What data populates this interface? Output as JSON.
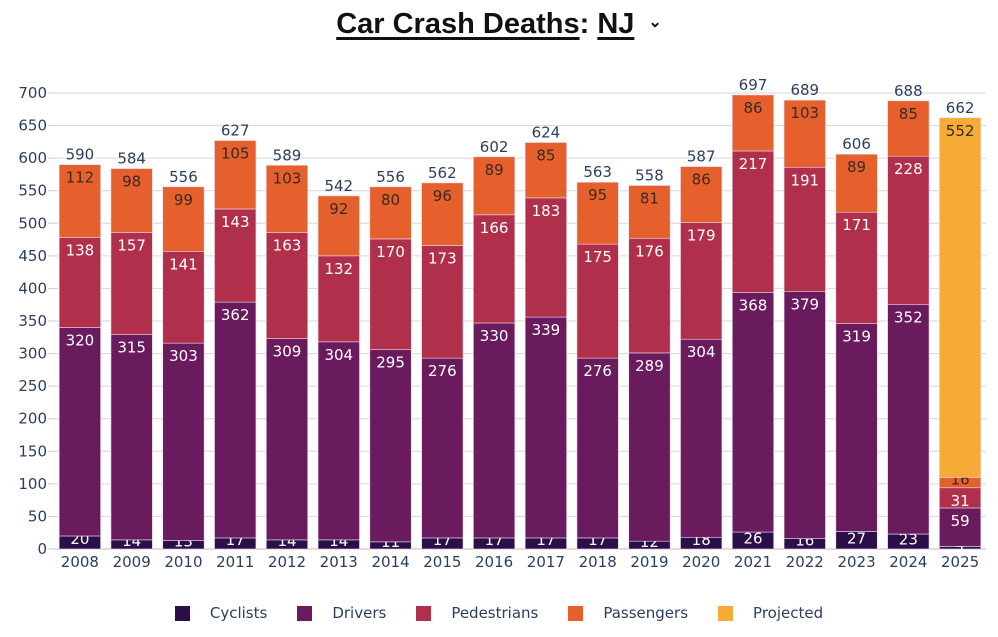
{
  "header": {
    "title_prefix": "Car Crash Deaths",
    "separator": ":",
    "state": "NJ",
    "dropdown_icon": "chevron-down-icon",
    "dropdown_glyph": "⌄"
  },
  "chart_data": {
    "type": "bar",
    "stacked": true,
    "title": "Car Crash Deaths: NJ",
    "xlabel": "",
    "ylabel": "",
    "ylim": [
      0,
      700
    ],
    "yticks": [
      0,
      50,
      100,
      150,
      200,
      250,
      300,
      350,
      400,
      450,
      500,
      550,
      600,
      650,
      700
    ],
    "grid": true,
    "legend_position": "bottom-center",
    "categories": [
      "2008",
      "2009",
      "2010",
      "2011",
      "2012",
      "2013",
      "2014",
      "2015",
      "2016",
      "2017",
      "2018",
      "2019",
      "2020",
      "2021",
      "2022",
      "2023",
      "2024",
      "2025"
    ],
    "series": [
      {
        "name": "Cyclists",
        "color": "#2c0f4a",
        "text_color": "#ffffff",
        "values": [
          20,
          14,
          13,
          17,
          14,
          14,
          11,
          17,
          17,
          17,
          17,
          12,
          18,
          26,
          16,
          27,
          23,
          4
        ]
      },
      {
        "name": "Drivers",
        "color": "#6a1b5e",
        "text_color": "#ffffff",
        "values": [
          320,
          315,
          303,
          362,
          309,
          304,
          295,
          276,
          330,
          339,
          276,
          289,
          304,
          368,
          379,
          319,
          352,
          59
        ]
      },
      {
        "name": "Pedestrians",
        "color": "#b0304b",
        "text_color": "#ffffff",
        "values": [
          138,
          157,
          141,
          143,
          163,
          132,
          170,
          173,
          166,
          183,
          175,
          176,
          179,
          217,
          191,
          171,
          228,
          31
        ]
      },
      {
        "name": "Passengers",
        "color": "#e5602c",
        "text_color": "#3a2a20",
        "values": [
          112,
          98,
          99,
          105,
          103,
          92,
          80,
          96,
          89,
          85,
          95,
          81,
          86,
          86,
          103,
          89,
          85,
          16
        ]
      },
      {
        "name": "Projected",
        "color": "#f5ab35",
        "text_color": "#3a2a20",
        "values": [
          0,
          0,
          0,
          0,
          0,
          0,
          0,
          0,
          0,
          0,
          0,
          0,
          0,
          0,
          0,
          0,
          0,
          552
        ]
      }
    ],
    "totals": [
      590,
      584,
      556,
      627,
      589,
      542,
      556,
      562,
      602,
      624,
      563,
      558,
      587,
      697,
      689,
      606,
      688,
      662
    ]
  }
}
